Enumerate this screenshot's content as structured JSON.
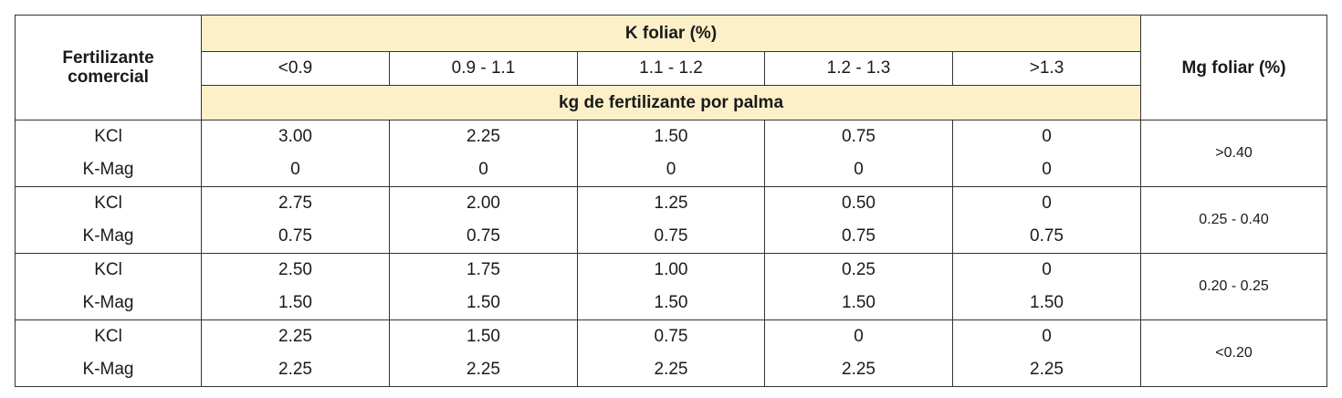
{
  "table": {
    "header": {
      "fertilizer_label": "Fertilizante comercial",
      "k_foliar_label": "K foliar (%)",
      "k_ranges": [
        "<0.9",
        "0.9 - 1.1",
        "1.1 - 1.2",
        "1.2 - 1.3",
        ">1.3"
      ],
      "units_label": "kg de fertilizante por palma",
      "mg_foliar_label": "Mg foliar (%)"
    },
    "groups": [
      {
        "mg": ">0.40",
        "rows": [
          {
            "fertilizer": "KCl",
            "values": [
              "3.00",
              "2.25",
              "1.50",
              "0.75",
              "0"
            ]
          },
          {
            "fertilizer": "K-Mag",
            "values": [
              "0",
              "0",
              "0",
              "0",
              "0"
            ]
          }
        ]
      },
      {
        "mg": "0.25 - 0.40",
        "rows": [
          {
            "fertilizer": "KCl",
            "values": [
              "2.75",
              "2.00",
              "1.25",
              "0.50",
              "0"
            ]
          },
          {
            "fertilizer": "K-Mag",
            "values": [
              "0.75",
              "0.75",
              "0.75",
              "0.75",
              "0.75"
            ]
          }
        ]
      },
      {
        "mg": "0.20 - 0.25",
        "rows": [
          {
            "fertilizer": "KCl",
            "values": [
              "2.50",
              "1.75",
              "1.00",
              "0.25",
              "0"
            ]
          },
          {
            "fertilizer": "K-Mag",
            "values": [
              "1.50",
              "1.50",
              "1.50",
              "1.50",
              "1.50"
            ]
          }
        ]
      },
      {
        "mg": "<0.20",
        "rows": [
          {
            "fertilizer": "KCl",
            "values": [
              "2.25",
              "1.50",
              "0.75",
              "0",
              "0"
            ]
          },
          {
            "fertilizer": "K-Mag",
            "values": [
              "2.25",
              "2.25",
              "2.25",
              "2.25",
              "2.25"
            ]
          }
        ]
      }
    ]
  }
}
